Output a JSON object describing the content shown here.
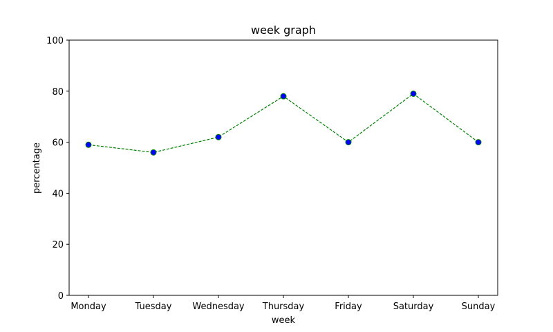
{
  "chart_data": {
    "type": "line",
    "title": "week graph",
    "xlabel": "week",
    "ylabel": "percentage",
    "categories": [
      "Monday",
      "Tuesday",
      "Wednesday",
      "Thursday",
      "Friday",
      "Saturday",
      "Sunday"
    ],
    "series": [
      {
        "values": [
          59,
          56,
          62,
          78,
          60,
          79,
          60
        ],
        "line_color": "#008000",
        "line_style": "dashed",
        "marker": "circle",
        "marker_face_color": "#0000ff",
        "marker_edge_color": "#008000"
      }
    ],
    "ylim": [
      0,
      100
    ],
    "yticks": [
      0,
      20,
      40,
      60,
      80,
      100
    ],
    "grid": false,
    "legend": false
  }
}
